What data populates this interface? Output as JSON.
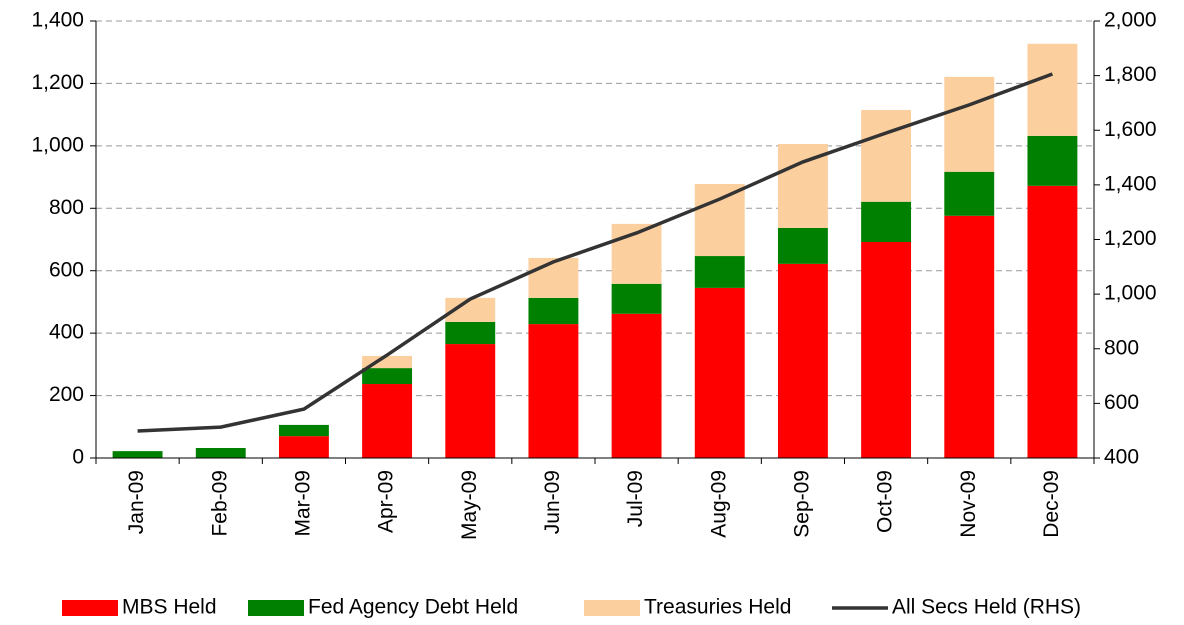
{
  "chart_data": {
    "type": "bar",
    "categories": [
      "Jan-09",
      "Feb-09",
      "Mar-09",
      "Apr-09",
      "May-09",
      "Jun-09",
      "Jul-09",
      "Aug-09",
      "Sep-09",
      "Oct-09",
      "Nov-09",
      "Dec-09"
    ],
    "stacked": true,
    "series": [
      {
        "name": "MBS Held",
        "color": "#ff0000",
        "values": [
          0,
          0,
          70,
          237,
          365,
          429,
          462,
          545,
          622,
          692,
          776,
          872
        ]
      },
      {
        "name": "Fed Agency Debt Held",
        "color": "#008000",
        "values": [
          22,
          32,
          36,
          51,
          71,
          84,
          96,
          102,
          115,
          129,
          141,
          160
        ]
      },
      {
        "name": "Treasuries Held",
        "color": "#fccf9f",
        "values": [
          0,
          0,
          0,
          39,
          77,
          128,
          192,
          231,
          269,
          294,
          304,
          295
        ]
      },
      {
        "name": "All Secs Held (RHS)",
        "type": "line",
        "axis": "y2",
        "color": "#333333",
        "values": [
          499,
          513,
          579,
          777,
          982,
          1118,
          1224,
          1348,
          1484,
          1590,
          1693,
          1806
        ]
      }
    ],
    "ylim": [
      0,
      1400
    ],
    "yticks": [
      0,
      200,
      400,
      600,
      800,
      {
        "value": 1000,
        "label": "1,000"
      },
      {
        "value": 1200,
        "label": "1,200"
      },
      {
        "value": 1400,
        "label": "1,400"
      }
    ],
    "y2lim": [
      400,
      2000
    ],
    "y2ticks": [
      400,
      600,
      800,
      {
        "value": 1000,
        "label": "1,000"
      },
      {
        "value": 1200,
        "label": "1,200"
      },
      {
        "value": 1400,
        "label": "1,400"
      },
      {
        "value": 1600,
        "label": "1,600"
      },
      {
        "value": 1800,
        "label": "1,800"
      },
      {
        "value": 2000,
        "label": "2,000"
      }
    ],
    "grid": true,
    "legend": "bottom"
  }
}
